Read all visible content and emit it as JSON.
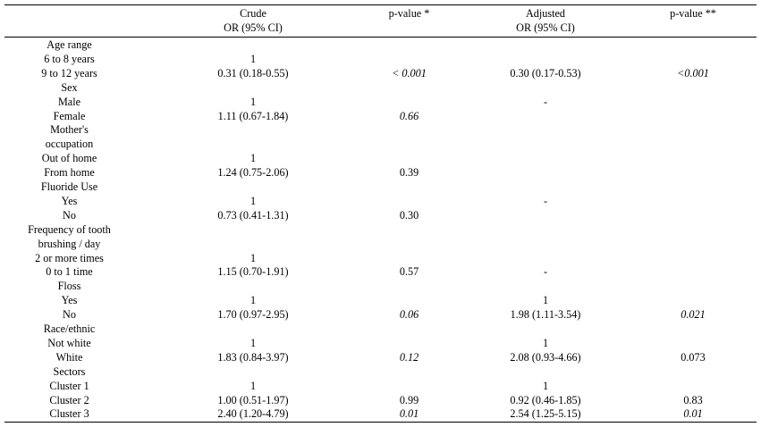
{
  "headers": {
    "crude_line1": "Crude",
    "crude_line2": "OR (95% CI)",
    "pvalue1": "p-value *",
    "adjusted_line1": "Adjusted",
    "adjusted_line2": "OR (95% CI)",
    "pvalue2": "p-value **"
  },
  "rows": [
    {
      "label": "Age range",
      "crude": "",
      "p1": "",
      "p1_italic": false,
      "adj": "",
      "p2": "",
      "p2_italic": false
    },
    {
      "label": "6 to 8 years",
      "crude": "1",
      "p1": "",
      "p1_italic": false,
      "adj": "",
      "p2": "",
      "p2_italic": false
    },
    {
      "label": "9 to 12 years",
      "crude": "0.31 (0.18-0.55)",
      "p1": "< 0.001",
      "p1_italic": true,
      "adj": "0.30 (0.17-0.53)",
      "p2": "<0.001",
      "p2_italic": true
    },
    {
      "label": "Sex",
      "crude": "",
      "p1": "",
      "p1_italic": false,
      "adj": "",
      "p2": "",
      "p2_italic": false
    },
    {
      "label": "Male",
      "crude": "1",
      "p1": "",
      "p1_italic": false,
      "adj": "-",
      "p2": "",
      "p2_italic": false
    },
    {
      "label": "Female",
      "crude": "1.11 (0.67-1.84)",
      "p1": "0.66",
      "p1_italic": true,
      "adj": "",
      "p2": "",
      "p2_italic": false
    },
    {
      "label": "Mother's",
      "crude": "",
      "p1": "",
      "p1_italic": false,
      "adj": "",
      "p2": "",
      "p2_italic": false
    },
    {
      "label": "occupation",
      "crude": "",
      "p1": "",
      "p1_italic": false,
      "adj": "",
      "p2": "",
      "p2_italic": false
    },
    {
      "label": "Out of home",
      "crude": "1",
      "p1": "",
      "p1_italic": false,
      "adj": "",
      "p2": "",
      "p2_italic": false
    },
    {
      "label": "From home",
      "crude": "1.24 (0.75-2.06)",
      "p1": "0.39",
      "p1_italic": false,
      "adj": "",
      "p2": "",
      "p2_italic": false
    },
    {
      "label": "Fluoride Use",
      "crude": "",
      "p1": "",
      "p1_italic": false,
      "adj": "",
      "p2": "",
      "p2_italic": false
    },
    {
      "label": "Yes",
      "crude": "1",
      "p1": "",
      "p1_italic": false,
      "adj": "-",
      "p2": "",
      "p2_italic": false
    },
    {
      "label": "No",
      "crude": "0.73 (0.41-1.31)",
      "p1": "0.30",
      "p1_italic": false,
      "adj": "",
      "p2": "",
      "p2_italic": false
    },
    {
      "label": "Frequency of tooth",
      "crude": "",
      "p1": "",
      "p1_italic": false,
      "adj": "",
      "p2": "",
      "p2_italic": false
    },
    {
      "label": "brushing / day",
      "crude": "",
      "p1": "",
      "p1_italic": false,
      "adj": "",
      "p2": "",
      "p2_italic": false
    },
    {
      "label": "2 or more times",
      "crude": "1",
      "p1": "",
      "p1_italic": false,
      "adj": "",
      "p2": "",
      "p2_italic": false
    },
    {
      "label": "0 to 1 time",
      "crude": "1.15 (0.70-1.91)",
      "p1": "0.57",
      "p1_italic": false,
      "adj": "-",
      "p2": "",
      "p2_italic": false
    },
    {
      "label": "Floss",
      "crude": "",
      "p1": "",
      "p1_italic": false,
      "adj": "",
      "p2": "",
      "p2_italic": false
    },
    {
      "label": "Yes",
      "crude": "1",
      "p1": "",
      "p1_italic": false,
      "adj": "1",
      "p2": "",
      "p2_italic": false
    },
    {
      "label": "No",
      "crude": "1.70 (0.97-2.95)",
      "p1": "0.06",
      "p1_italic": true,
      "adj": "1.98 (1.11-3.54)",
      "p2": "0.021",
      "p2_italic": true
    },
    {
      "label": "Race/ethnic",
      "crude": "",
      "p1": "",
      "p1_italic": false,
      "adj": "",
      "p2": "",
      "p2_italic": false
    },
    {
      "label": "Not white",
      "crude": "1",
      "p1": "",
      "p1_italic": false,
      "adj": "1",
      "p2": "",
      "p2_italic": false
    },
    {
      "label": "White",
      "crude": "1.83 (0.84-3.97)",
      "p1": "0.12",
      "p1_italic": true,
      "adj": "2.08 (0.93-4.66)",
      "p2": "0.073",
      "p2_italic": false
    },
    {
      "label": "Sectors",
      "crude": "",
      "p1": "",
      "p1_italic": false,
      "adj": "",
      "p2": "",
      "p2_italic": false
    },
    {
      "label": "Cluster 1",
      "crude": "1",
      "p1": "",
      "p1_italic": false,
      "adj": "1",
      "p2": "",
      "p2_italic": false
    },
    {
      "label": "Cluster 2",
      "crude": "1.00 (0.51-1.97)",
      "p1": "0.99",
      "p1_italic": false,
      "adj": "0.92 (0.46-1.85)",
      "p2": "0.83",
      "p2_italic": false
    },
    {
      "label": "Cluster 3",
      "crude": "2.40 (1.20-4.79)",
      "p1": "0.01",
      "p1_italic": true,
      "adj": "2.54 (1.25-5.15)",
      "p2": "0.01",
      "p2_italic": true
    }
  ]
}
